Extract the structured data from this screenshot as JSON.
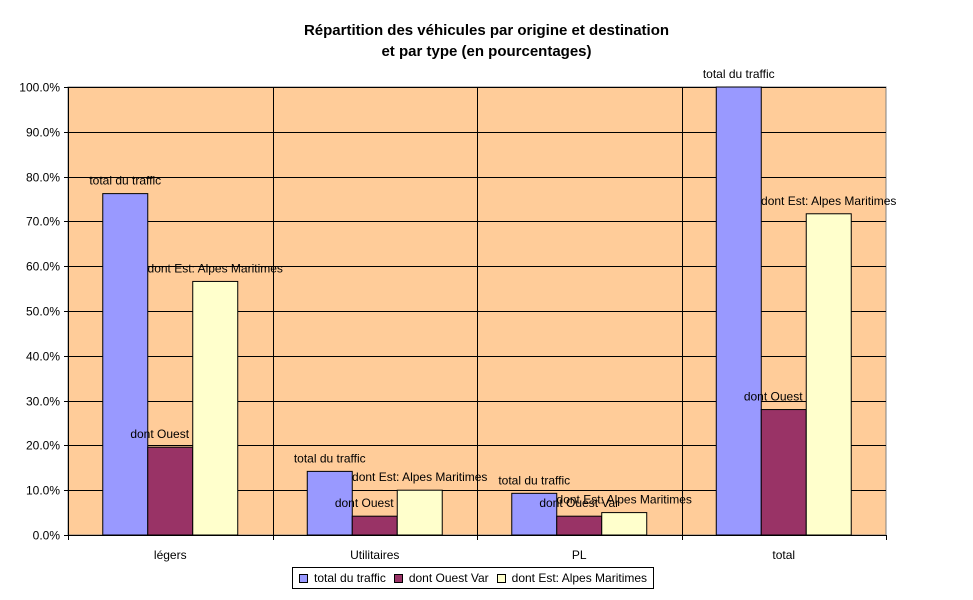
{
  "chart_data": {
    "type": "bar",
    "title": [
      "Répartition des véhicules par origine et destination",
      "et par type (en pourcentages)"
    ],
    "categories": [
      "légers",
      "Utilitaires",
      "PL",
      "total"
    ],
    "series": [
      {
        "name": "total du traffic",
        "color": "#9999ff",
        "values": [
          76.2,
          14.2,
          9.3,
          100.0
        ]
      },
      {
        "name": "dont Ouest Var",
        "color": "#993366",
        "values": [
          19.6,
          4.2,
          4.2,
          28.0
        ]
      },
      {
        "name": "dont Est: Alpes Maritimes",
        "color": "#ffffcc",
        "values": [
          56.6,
          10.0,
          5.0,
          71.7
        ]
      }
    ],
    "ylim": [
      0,
      100
    ],
    "yticks": [
      "0.0%",
      "10.0%",
      "20.0%",
      "30.0%",
      "40.0%",
      "50.0%",
      "60.0%",
      "70.0%",
      "80.0%",
      "90.0%",
      "100.0%"
    ],
    "plot_background": "#ffcc99",
    "grid": true,
    "legend_position": "bottom",
    "data_labels": "series name"
  }
}
